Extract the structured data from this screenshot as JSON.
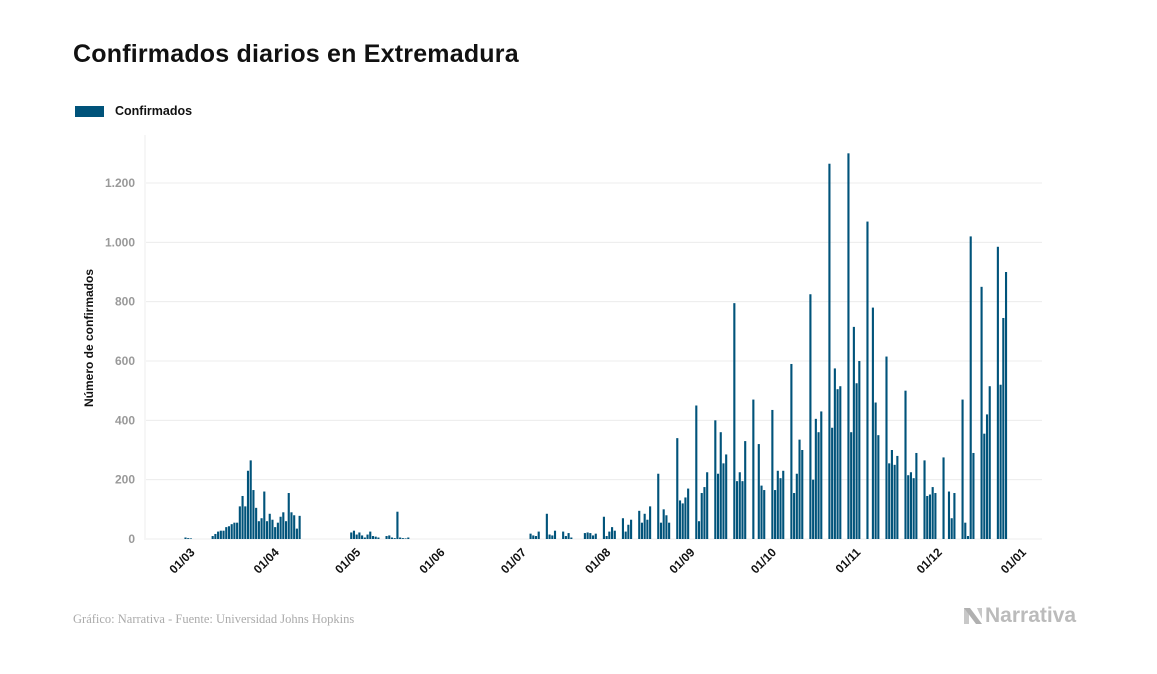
{
  "chart_data": {
    "type": "bar",
    "title": "Confirmados diarios en Extremadura",
    "xlabel": "",
    "ylabel": "Número de confirmados",
    "ylim": [
      0,
      1300
    ],
    "yticks": [
      0,
      200,
      400,
      600,
      800,
      1000,
      1200
    ],
    "ytick_labels": [
      "0",
      "200",
      "400",
      "600",
      "800",
      "1.000",
      "1.200"
    ],
    "xticks": [
      "01/03",
      "01/04",
      "01/05",
      "01/06",
      "01/07",
      "01/08",
      "01/09",
      "01/10",
      "01/11",
      "01/12",
      "01/01"
    ],
    "grid": true,
    "legend_position": "top-left",
    "start_date": "2020-03-01",
    "series": [
      {
        "name": "Confirmados",
        "color": "#00537A",
        "values": [
          5,
          3,
          2,
          0,
          0,
          0,
          0,
          0,
          0,
          0,
          10,
          17,
          25,
          28,
          28,
          40,
          43,
          50,
          55,
          55,
          110,
          145,
          110,
          230,
          265,
          165,
          105,
          60,
          70,
          160,
          60,
          85,
          65,
          40,
          55,
          75,
          90,
          60,
          155,
          90,
          80,
          35,
          78,
          0,
          0,
          0,
          0,
          0,
          0,
          0,
          0,
          0,
          0,
          0,
          0,
          0,
          0,
          0,
          0,
          0,
          0,
          22,
          28,
          15,
          22,
          12,
          5,
          15,
          25,
          10,
          8,
          5,
          0,
          0,
          10,
          12,
          5,
          3,
          92,
          5,
          3,
          2,
          5,
          0,
          0,
          0,
          0,
          0,
          0,
          0,
          0,
          0,
          0,
          0,
          0,
          0,
          0,
          0,
          0,
          0,
          0,
          0,
          0,
          0,
          0,
          0,
          0,
          0,
          0,
          0,
          0,
          0,
          0,
          0,
          0,
          0,
          0,
          0,
          0,
          0,
          0,
          0,
          0,
          0,
          0,
          0,
          0,
          18,
          12,
          10,
          25,
          0,
          0,
          85,
          15,
          12,
          28,
          0,
          0,
          25,
          10,
          20,
          5,
          0,
          0,
          0,
          0,
          20,
          22,
          20,
          12,
          18,
          0,
          0,
          75,
          10,
          25,
          40,
          28,
          0,
          0,
          70,
          25,
          48,
          65,
          0,
          0,
          95,
          55,
          85,
          65,
          110,
          0,
          0,
          220,
          55,
          100,
          80,
          55,
          0,
          0,
          340,
          130,
          120,
          140,
          170,
          0,
          0,
          450,
          60,
          155,
          175,
          225,
          0,
          0,
          400,
          220,
          360,
          255,
          285,
          0,
          0,
          795,
          195,
          225,
          195,
          330,
          0,
          0,
          470,
          0,
          320,
          180,
          165,
          0,
          0,
          435,
          165,
          230,
          205,
          230,
          0,
          0,
          590,
          155,
          220,
          335,
          300,
          0,
          0,
          825,
          200,
          405,
          360,
          430,
          0,
          0,
          1265,
          375,
          575,
          505,
          515,
          0,
          0,
          1300,
          360,
          715,
          525,
          600,
          0,
          0,
          1070,
          0,
          780,
          460,
          350,
          0,
          0,
          615,
          255,
          300,
          250,
          280,
          0,
          0,
          500,
          215,
          225,
          205,
          290,
          0,
          0,
          265,
          145,
          150,
          175,
          155,
          0,
          0,
          275,
          0,
          160,
          70,
          155,
          0,
          0,
          470,
          55,
          10,
          1020,
          290,
          0,
          0,
          850,
          355,
          420,
          515,
          0,
          0,
          985,
          520,
          745,
          900
        ]
      }
    ],
    "legend": [
      {
        "label": "Confirmados",
        "color": "#00537A"
      }
    ]
  },
  "footer": {
    "source": "Gráfico: Narrativa - Fuente: Universidad Johns Hopkins",
    "brand": "Narrativa"
  },
  "icons": {
    "brand_logo": "narrativa-n-logo"
  }
}
